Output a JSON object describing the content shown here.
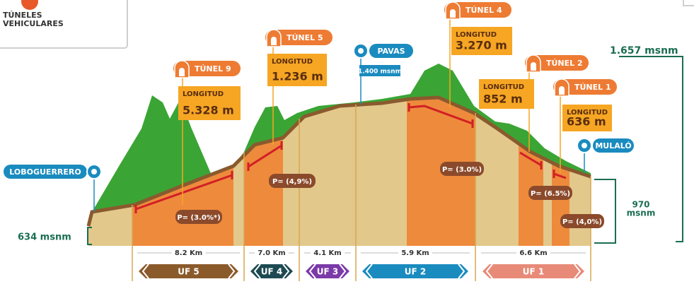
{
  "legend": {
    "lines": [
      "TÚNELES",
      "VEHICULARES"
    ]
  },
  "elevations": {
    "top": "1.657 msnm",
    "base": "634 msnm",
    "end": [
      "970",
      "msnm"
    ]
  },
  "places": [
    {
      "name": "LOBOGUERRERO"
    },
    {
      "name": "PAVAS",
      "elevation": "1.400 msnm"
    },
    {
      "name": "MULALÓ"
    }
  ],
  "tunnels": [
    {
      "name": "TÚNEL 9",
      "length_label": "LONGITUD",
      "length": "5.328 m"
    },
    {
      "name": "TÚNEL 5",
      "length_label": "LONGITUD",
      "length": "1.236 m"
    },
    {
      "name": "TÚNEL 4",
      "length_label": "LONGITUD",
      "length": "3.270 m"
    },
    {
      "name": "TÚNEL 2",
      "length_label": "LONGITUD",
      "length": "852 m"
    },
    {
      "name": "TÚNEL 1",
      "length_label": "LONGITUD",
      "length": "636 m"
    }
  ],
  "slopes": [
    "P= (3.0%*)",
    "P= (4,9%)",
    "P= (3.0%)",
    "P= (6.5%)",
    "P= (4,0%)"
  ],
  "segments": [
    {
      "distance": "8.2 Km",
      "unit": "UF 5"
    },
    {
      "distance": "7.0 Km",
      "unit": "UF 4"
    },
    {
      "distance": "4.1 Km",
      "unit": "UF 3"
    },
    {
      "distance": "5.9 Km",
      "unit": "UF 2"
    },
    {
      "distance": "6.6 Km",
      "unit": "UF 1"
    }
  ]
}
